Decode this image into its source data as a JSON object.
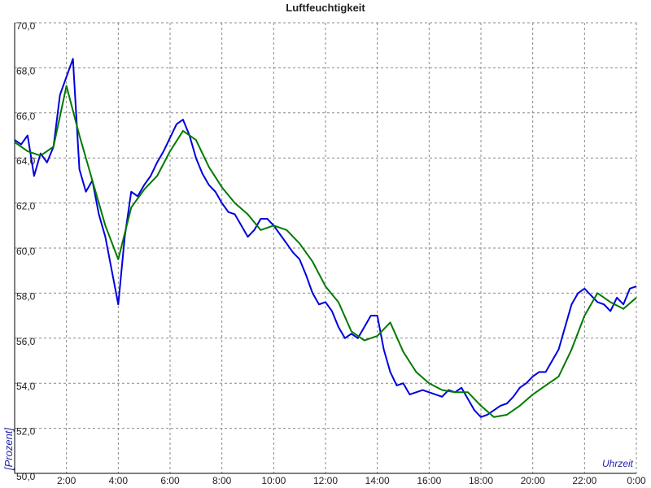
{
  "chart_data": {
    "type": "line",
    "title": "Luftfeuchtigkeit",
    "ylabel": "[Prozent]",
    "xlabel": "Uhrzeit",
    "xlim": [
      0,
      24
    ],
    "ylim": [
      50,
      70
    ],
    "grid": true,
    "xticks": [
      {
        "value": 2,
        "label": "2:00"
      },
      {
        "value": 4,
        "label": "4:00"
      },
      {
        "value": 6,
        "label": "6:00"
      },
      {
        "value": 8,
        "label": "8:00"
      },
      {
        "value": 10,
        "label": "10:00"
      },
      {
        "value": 12,
        "label": "12:00"
      },
      {
        "value": 14,
        "label": "14:00"
      },
      {
        "value": 16,
        "label": "16:00"
      },
      {
        "value": 18,
        "label": "18:00"
      },
      {
        "value": 20,
        "label": "20:00"
      },
      {
        "value": 22,
        "label": "22:00"
      },
      {
        "value": 24,
        "label": "0:00"
      }
    ],
    "yticks": [
      {
        "value": 50,
        "label": "50,0"
      },
      {
        "value": 52,
        "label": "52,0"
      },
      {
        "value": 54,
        "label": "54,0"
      },
      {
        "value": 56,
        "label": "56,0"
      },
      {
        "value": 58,
        "label": "58,0"
      },
      {
        "value": 60,
        "label": "60,0"
      },
      {
        "value": 62,
        "label": "62,0"
      },
      {
        "value": 64,
        "label": "64,0"
      },
      {
        "value": 66,
        "label": "66,0"
      },
      {
        "value": 68,
        "label": "68,0"
      },
      {
        "value": 70,
        "label": "70,0"
      }
    ],
    "series": [
      {
        "color": "#0000dd",
        "x": [
          0,
          0.25,
          0.5,
          0.75,
          1,
          1.25,
          1.5,
          1.75,
          2,
          2.25,
          2.5,
          2.75,
          3,
          3.25,
          3.5,
          3.75,
          4,
          4.25,
          4.5,
          4.75,
          5,
          5.25,
          5.5,
          5.75,
          6,
          6.25,
          6.5,
          6.75,
          7,
          7.25,
          7.5,
          7.75,
          8,
          8.25,
          8.5,
          8.75,
          9,
          9.25,
          9.5,
          9.75,
          10,
          10.25,
          10.5,
          10.75,
          11,
          11.25,
          11.5,
          11.75,
          12,
          12.25,
          12.5,
          12.75,
          13,
          13.25,
          13.5,
          13.75,
          14,
          14.25,
          14.5,
          14.75,
          15,
          15.25,
          15.5,
          15.75,
          16,
          16.25,
          16.5,
          16.75,
          17,
          17.25,
          17.5,
          17.75,
          18,
          18.25,
          18.5,
          18.75,
          19,
          19.25,
          19.5,
          19.75,
          20,
          20.25,
          20.5,
          20.75,
          21,
          21.25,
          21.5,
          21.75,
          22,
          22.25,
          22.5,
          22.75,
          23,
          23.25,
          23.5,
          23.75,
          24
        ],
        "values": [
          64.8,
          64.6,
          65.0,
          63.2,
          64.2,
          63.8,
          64.5,
          66.8,
          67.6,
          68.4,
          63.5,
          62.5,
          63.0,
          61.5,
          60.5,
          59.0,
          57.5,
          60.5,
          62.5,
          62.3,
          62.8,
          63.2,
          63.8,
          64.3,
          64.9,
          65.5,
          65.7,
          65.0,
          64.0,
          63.3,
          62.8,
          62.5,
          62.0,
          61.6,
          61.5,
          61.0,
          60.5,
          60.8,
          61.3,
          61.3,
          61.0,
          60.6,
          60.2,
          59.8,
          59.5,
          58.8,
          58.0,
          57.5,
          57.6,
          57.2,
          56.5,
          56.0,
          56.2,
          56.0,
          56.5,
          57.0,
          57.0,
          55.5,
          54.5,
          53.9,
          54.0,
          53.5,
          53.6,
          53.7,
          53.6,
          53.5,
          53.4,
          53.7,
          53.6,
          53.8,
          53.3,
          52.8,
          52.5,
          52.6,
          52.8,
          53.0,
          53.1,
          53.4,
          53.8,
          54.0,
          54.3,
          54.5,
          54.5,
          55.0,
          55.5,
          56.5,
          57.5,
          58.0,
          58.2,
          57.9,
          57.6,
          57.5,
          57.2,
          57.8,
          57.5,
          58.2,
          58.3
        ]
      },
      {
        "color": "#007a00",
        "x": [
          0,
          0.5,
          1,
          1.5,
          2,
          2.5,
          3,
          3.5,
          4,
          4.5,
          5,
          5.5,
          6,
          6.5,
          7,
          7.5,
          8,
          8.5,
          9,
          9.5,
          10,
          10.5,
          11,
          11.5,
          12,
          12.5,
          13,
          13.5,
          14,
          14.5,
          15,
          15.5,
          16,
          16.5,
          17,
          17.5,
          18,
          18.5,
          19,
          19.5,
          20,
          20.5,
          21,
          21.5,
          22,
          22.5,
          23,
          23.5,
          24
        ],
        "values": [
          64.7,
          64.3,
          64.1,
          64.5,
          67.2,
          65.0,
          63.0,
          61.0,
          59.5,
          61.8,
          62.6,
          63.2,
          64.3,
          65.2,
          64.8,
          63.6,
          62.7,
          62.0,
          61.5,
          60.8,
          61.0,
          60.8,
          60.2,
          59.4,
          58.3,
          57.6,
          56.3,
          55.9,
          56.1,
          56.7,
          55.4,
          54.5,
          54.0,
          53.7,
          53.6,
          53.6,
          53.0,
          52.5,
          52.6,
          53.0,
          53.5,
          53.9,
          54.3,
          55.5,
          57.0,
          58.0,
          57.6,
          57.3,
          57.8
        ]
      }
    ]
  }
}
